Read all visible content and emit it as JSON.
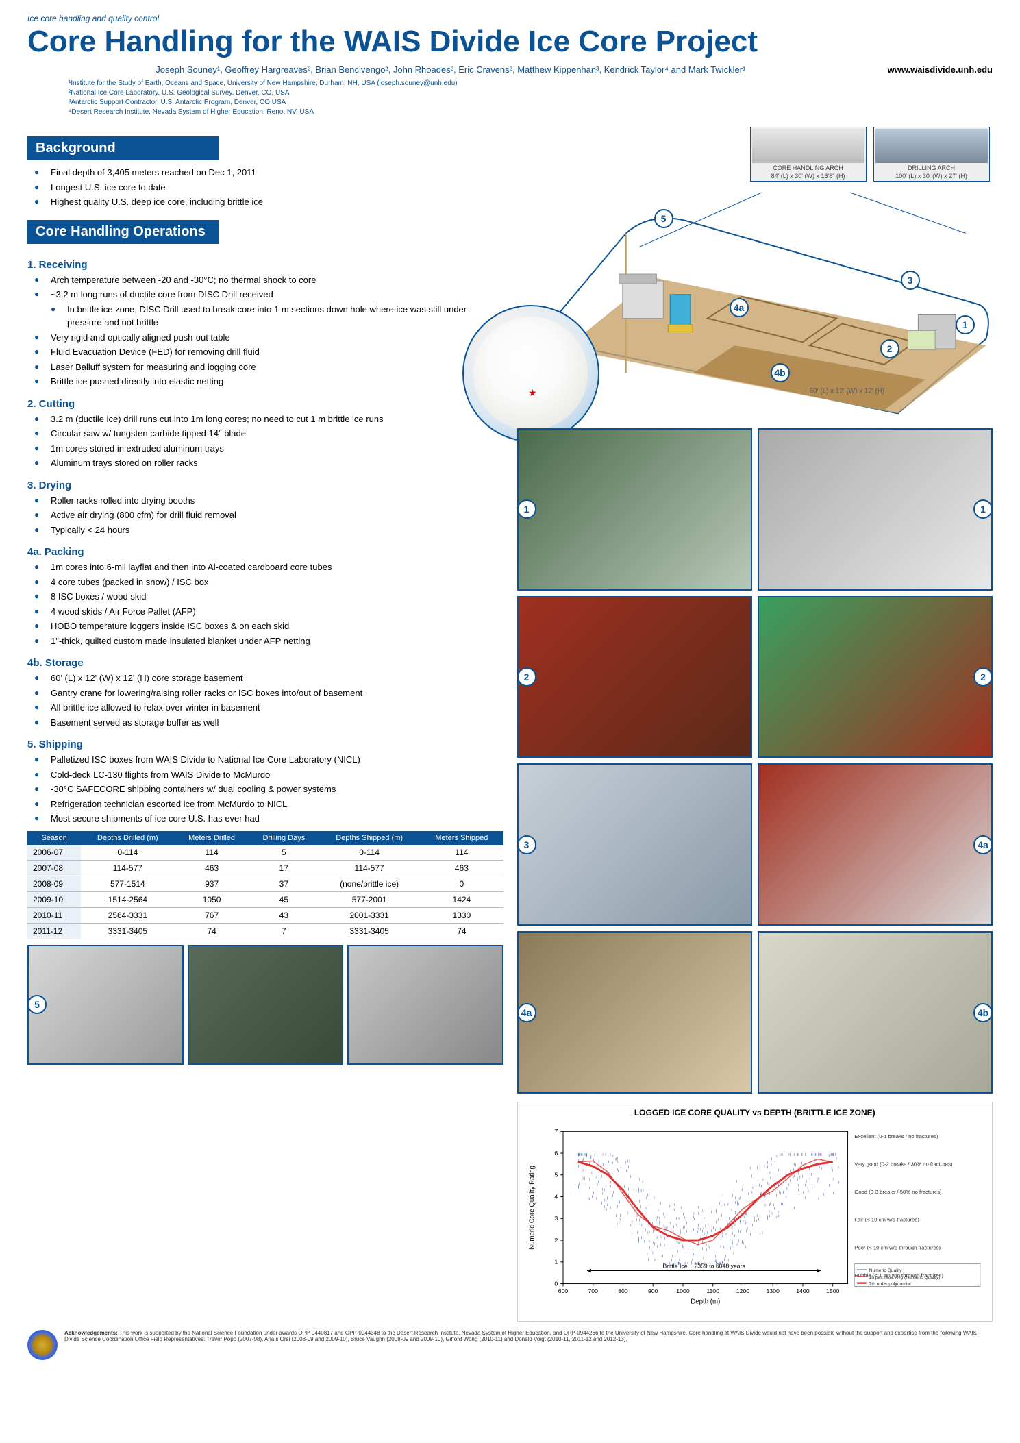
{
  "overline": "Ice core handling and quality control",
  "title": "Core Handling for the WAIS Divide Ice Core Project",
  "authors": "Joseph Souney¹, Geoffrey Hargreaves², Brian Bencivengo², John Rhoades², Eric Cravens², Matthew Kippenhan³, Kendrick Taylor⁴ and Mark Twickler¹",
  "url": "www.waisdivide.unh.edu",
  "affiliations": [
    "¹Institute for the Study of Earth, Oceans and Space, University of New Hampshire, Durham, NH, USA (joseph.souney@unh.edu)",
    "²National Ice Core Laboratory, U.S. Geological Survey, Denver, CO, USA",
    "³Antarctic Support Contractor, U.S. Antarctic Program, Denver, CO USA",
    "⁴Desert Research Institute, Nevada System of Higher Education, Reno, NV, USA"
  ],
  "background": {
    "header": "Background",
    "items": [
      "Final depth of 3,405 meters reached on Dec 1, 2011",
      "Longest U.S. ice core to date",
      "Highest quality U.S. deep ice core, including brittle ice"
    ]
  },
  "operations": {
    "header": "Core Handling Operations",
    "sections": [
      {
        "head": "1. Receiving",
        "items": [
          "Arch temperature between -20 and -30°C; no thermal shock to core",
          "~3.2 m long runs of ductile core from DISC Drill received",
          "In brittle ice zone, DISC Drill used to break core into 1 m sections down hole where ice was still under pressure and not brittle",
          "Very rigid and optically aligned push-out table",
          "Fluid Evacuation Device (FED) for removing drill fluid",
          "Laser Balluff system for measuring and logging core",
          "Brittle ice pushed directly into elastic netting"
        ],
        "subIndices": [
          2
        ]
      },
      {
        "head": "2. Cutting",
        "items": [
          "3.2 m (ductile ice) drill runs cut into 1m long cores; no need to cut 1 m brittle ice runs",
          "Circular saw w/ tungsten carbide tipped 14\" blade",
          "1m cores stored in extruded aluminum trays",
          "Aluminum trays stored on roller racks"
        ]
      },
      {
        "head": "3. Drying",
        "items": [
          "Roller racks rolled into drying booths",
          "Active air drying (800 cfm) for drill fluid removal",
          "Typically < 24 hours"
        ]
      },
      {
        "head": "4a. Packing",
        "items": [
          "1m cores into 6-mil layflat and then into Al-coated cardboard core tubes",
          "4 core tubes (packed in snow) / ISC box",
          "8 ISC boxes / wood skid",
          "4 wood skids / Air Force Pallet (AFP)",
          "HOBO temperature loggers inside ISC boxes & on each skid",
          "1\"-thick, quilted custom made insulated blanket under AFP netting"
        ]
      },
      {
        "head": "4b. Storage",
        "items": [
          "60' (L) x 12' (W) x 12' (H) core storage basement",
          "Gantry crane for lowering/raising roller racks or ISC boxes into/out of basement",
          "All brittle ice allowed to relax over winter in basement",
          "Basement served as storage buffer as well"
        ]
      },
      {
        "head": "5. Shipping",
        "items": [
          "Palletized ISC boxes from WAIS Divide to National Ice Core Laboratory (NICL)",
          "Cold-deck LC-130 flights from WAIS Divide to McMurdo",
          "-30°C SAFECORE shipping containers w/ dual cooling & power systems",
          "Refrigeration technician escorted ice from McMurdo to NICL",
          "Most secure shipments of ice core U.S. has ever had"
        ]
      }
    ]
  },
  "arch_labels": {
    "core_handling": {
      "title": "CORE HANDLING ARCH",
      "dims": "84' (L) x 30' (W) x 16'5\" (H)"
    },
    "drilling": {
      "title": "DRILLING ARCH",
      "dims": "100' (L) x 30' (W) x 27' (H)"
    },
    "basement": "60' (L) x 12' (W) x 12' (H)"
  },
  "photo_badges": [
    "1",
    "1",
    "2",
    "2",
    "3",
    "4a",
    "4a",
    "4b"
  ],
  "bottom_badge": "5",
  "table": {
    "columns": [
      "Season",
      "Depths Drilled (m)",
      "Meters Drilled",
      "Drilling Days",
      "Depths Shipped (m)",
      "Meters Shipped"
    ],
    "rows": [
      [
        "2006-07",
        "0-114",
        "114",
        "5",
        "0-114",
        "114"
      ],
      [
        "2007-08",
        "114-577",
        "463",
        "17",
        "114-577",
        "463"
      ],
      [
        "2008-09",
        "577-1514",
        "937",
        "37",
        "(none/brittle ice)",
        "0"
      ],
      [
        "2009-10",
        "1514-2564",
        "1050",
        "45",
        "577-2001",
        "1424"
      ],
      [
        "2010-11",
        "2564-3331",
        "767",
        "43",
        "2001-3331",
        "1330"
      ],
      [
        "2011-12",
        "3331-3405",
        "74",
        "7",
        "3331-3405",
        "74"
      ]
    ]
  },
  "chart": {
    "title": "LOGGED ICE CORE QUALITY vs DEPTH (BRITTLE ICE ZONE)",
    "ylabel": "Numeric Core Quality Rating",
    "xlabel": "Depth (m)",
    "brittle_label": "Brittle Ice, ~2359 to 6048 years",
    "xlim": [
      600,
      1550
    ],
    "xtick_step": 100,
    "ylim": [
      0,
      7
    ],
    "ytick_step": 1,
    "quality_labels": [
      "Excellent  (0-1 breaks / no fractures)",
      "Very good  (0-2 breaks / 30% no fractures)",
      "Good  (0-3 breaks / 50% no fractures)",
      "Fair  (< 10 cm  w/o  fractures)",
      "Poor  (< 10 cm  w/o through fractures)",
      "Rubble  (< 1 cm  w/o  through fractures)"
    ],
    "series_color": "#e03030",
    "data_color": "#1a3a9a",
    "legend": [
      "Numeric Quality",
      "10 per. Mov. Avg (Numeric Quality)",
      "7th order polynomial"
    ],
    "curve_points": [
      [
        650,
        5.6
      ],
      [
        700,
        5.4
      ],
      [
        750,
        5.0
      ],
      [
        800,
        4.3
      ],
      [
        850,
        3.4
      ],
      [
        900,
        2.6
      ],
      [
        950,
        2.2
      ],
      [
        1000,
        2.0
      ],
      [
        1050,
        2.0
      ],
      [
        1100,
        2.2
      ],
      [
        1150,
        2.6
      ],
      [
        1200,
        3.2
      ],
      [
        1250,
        3.9
      ],
      [
        1300,
        4.5
      ],
      [
        1350,
        5.0
      ],
      [
        1400,
        5.3
      ],
      [
        1450,
        5.5
      ],
      [
        1500,
        5.6
      ]
    ],
    "scatter_x_range": [
      650,
      1520
    ],
    "background_color": "#ffffff",
    "grid_color": "#ffffff",
    "title_fontsize": 12,
    "label_fontsize": 10
  },
  "acknowledgements": {
    "head": "Acknowledgements:",
    "body": "This work is supported by the National Science Foundation under awards OPP-0440817 and OPP-0944348 to the Desert Research Institute, Nevada System of Higher Education, and OPP-0944266 to the University of New Hampshire. Core handling at WAIS Divide would not have been possible without the support and expertise from the following WAIS Divide Science Coordination Office Field Representatives: Trevor Popp (2007-08), Anaïs Orsi (2008-09 and 2009-10), Bruce Vaughn (2008-09 and 2009-10), Gifford Wong (2010-11) and Donald Voigt (2010-11, 2011-12 and 2012-13)."
  }
}
